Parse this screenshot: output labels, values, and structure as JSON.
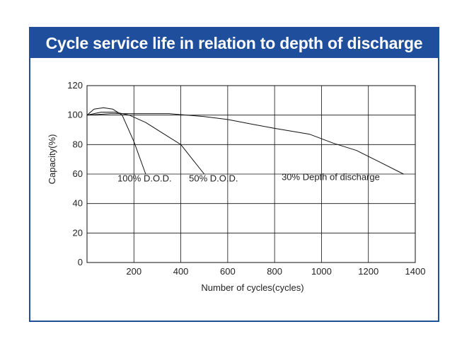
{
  "chart_data": {
    "type": "line",
    "title": "Cycle service life in relation to depth of discharge",
    "xlabel": "Number  of cycles(cycles)",
    "ylabel": "Capacity(%)",
    "xlim": [
      0,
      1400
    ],
    "ylim": [
      0,
      120
    ],
    "x_ticks": [
      "200",
      "400",
      "600",
      "800",
      "1000",
      "1200",
      "1400"
    ],
    "y_ticks": [
      "0",
      "20",
      "40",
      "60",
      "80",
      "100",
      "120"
    ],
    "grid": true,
    "series": [
      {
        "name": "100% D.O.D.",
        "x": [
          0,
          30,
          70,
          110,
          150,
          200,
          250
        ],
        "y": [
          100,
          104,
          105,
          104,
          100,
          82,
          60
        ]
      },
      {
        "name": "50% D.O.D.",
        "x": [
          0,
          60,
          120,
          180,
          250,
          320,
          400,
          450,
          500
        ],
        "y": [
          100,
          102,
          102,
          100,
          95,
          88,
          80,
          70,
          60
        ]
      },
      {
        "name": "30% Depth of discharge",
        "x": [
          0,
          100,
          200,
          350,
          500,
          600,
          700,
          800,
          950,
          1050,
          1150,
          1250,
          1350
        ],
        "y": [
          100,
          101,
          101,
          101,
          99,
          97,
          94,
          91,
          87,
          81,
          76,
          68,
          60
        ]
      }
    ],
    "annotations": [
      {
        "text": "100% D.O.D.",
        "x": 130,
        "y": 55
      },
      {
        "text": "50% D.O.D.",
        "x": 435,
        "y": 55
      },
      {
        "text": "30% Depth of discharge",
        "x": 830,
        "y": 56
      }
    ]
  }
}
